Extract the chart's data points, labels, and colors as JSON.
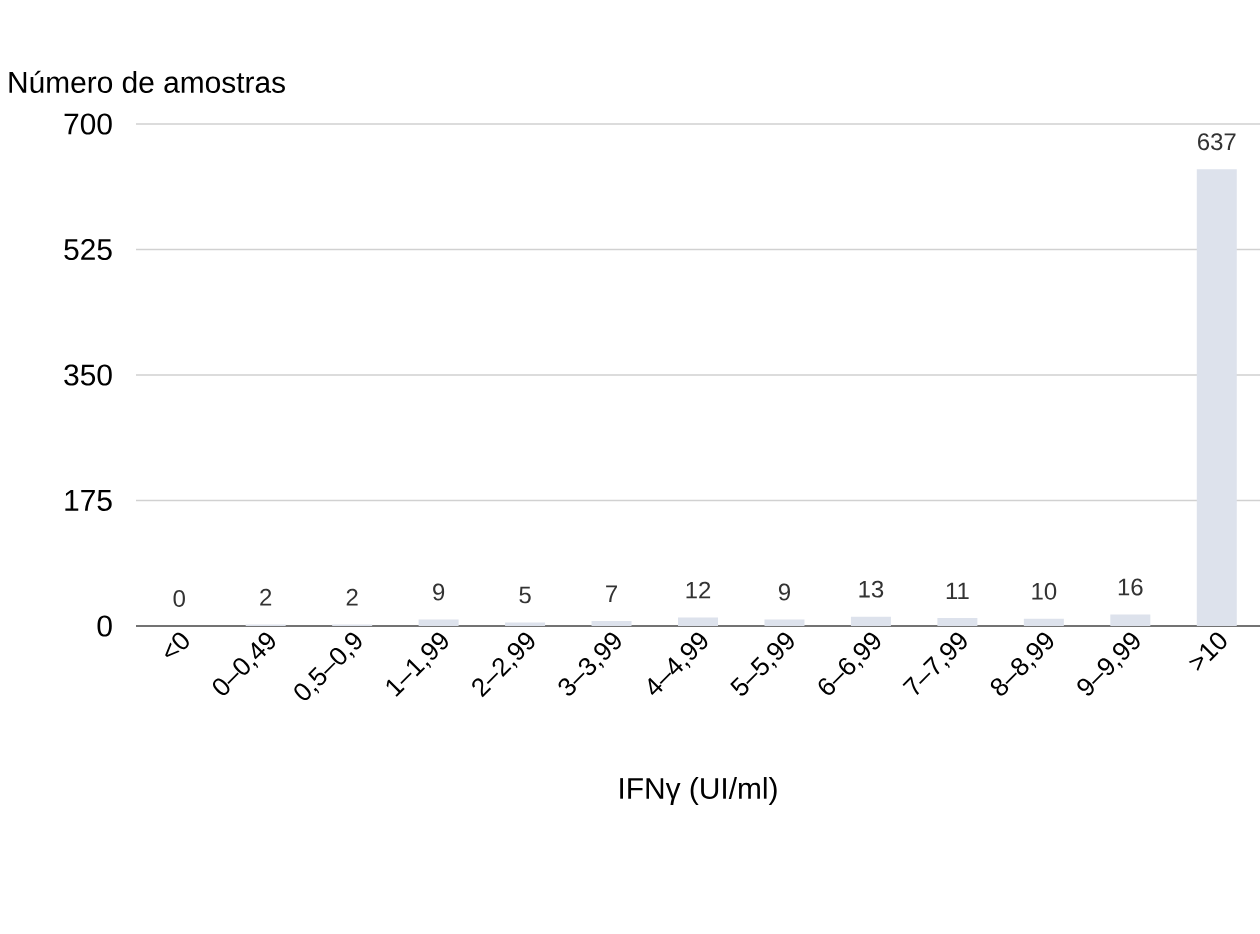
{
  "chart_data": {
    "type": "bar",
    "ylabel": "Número de amostras",
    "xlabel": "IFNγ (UI/ml)",
    "categories": [
      "<0",
      "0–0,49",
      "0,5–0,9",
      "1–1,99",
      "2–2,99",
      "3–3,99",
      "4–4,99",
      "5–5,99",
      "6–6,99",
      "7–7,99",
      "8–8,99",
      "9–9,99",
      ">10"
    ],
    "values": [
      0,
      2,
      2,
      9,
      5,
      7,
      12,
      9,
      13,
      11,
      10,
      16,
      637
    ],
    "color": "#dde2ec",
    "ylim": [
      0,
      700
    ],
    "yticks": [
      0,
      175,
      350,
      525,
      700
    ],
    "grid": "y",
    "data_labels": true
  }
}
